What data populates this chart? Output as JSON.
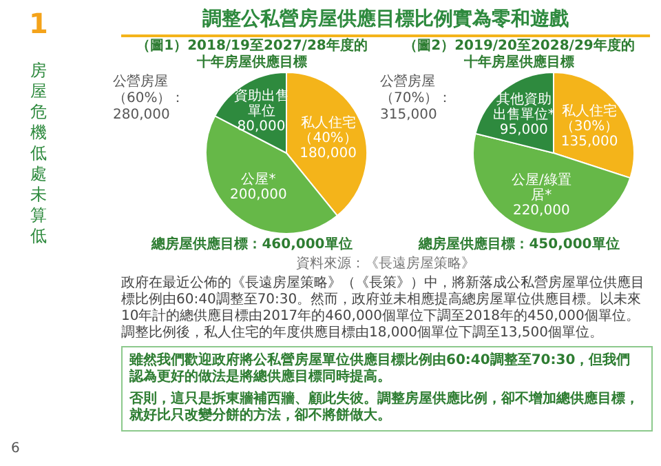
{
  "chart_data": [
    {
      "type": "pie",
      "title": "（圖1）2018/19至2027/28年度的十年房屋供應目標",
      "categories": [
        "私人住宅（40%）",
        "公屋*",
        "資助出售單位"
      ],
      "values": [
        180000,
        200000,
        80000
      ],
      "value_labels": [
        "180,000",
        "200,000",
        "80,000"
      ],
      "colors": [
        "#f4b41a",
        "#66b848",
        "#2e8a3e"
      ],
      "legend": false,
      "annotations": [
        "公營房屋（60%）：280,000",
        "總房屋供應目標：460,000單位",
        "資料來源：《長遠房屋策略》",
        "調整公私營房屋供應目標比例實為零和遊戲",
        "1",
        "房屋危機低處未算低",
        "政府在最近公佈的《長遠房屋策略》（《長策》）中，將新落成公私營房屋單位供應目標比例由60:40調整至70:30。然而，政府並未相應提高總房屋單位供應目標。以未來10年計的總供應目標由2017年的460,000個單位下調至2018年的450,000個單位。調整比例後，私人住宅的年度供應目標由18,000個單位下調至13,500個單位。",
        "雖然我們歡迎政府將公私營房屋單位供應目標比例由60:40調整至70:30，但我們認為更好的做法是將總供應目標同時提高。",
        "否則，這只是拆東牆補西牆、顧此失彼。調整房屋供應比例，卻不增加總供應目標，就好比只改變分餅的方法，卻不將餅做大。",
        "6"
      ]
    },
    {
      "type": "pie",
      "title": "（圖2）2019/20至2028/29年度的十年房屋供應目標",
      "categories": [
        "私人住宅（30%）",
        "公屋/綠置居*",
        "其他資助出售單位*"
      ],
      "values": [
        135000,
        220000,
        95000
      ],
      "value_labels": [
        "135,000",
        "220,000",
        "95,000"
      ],
      "colors": [
        "#f4b41a",
        "#66b848",
        "#2e8a3e"
      ],
      "legend": false,
      "annotations": [
        "公營房屋（70%）：315,000",
        "總房屋供應目標：450,000單位"
      ]
    }
  ]
}
